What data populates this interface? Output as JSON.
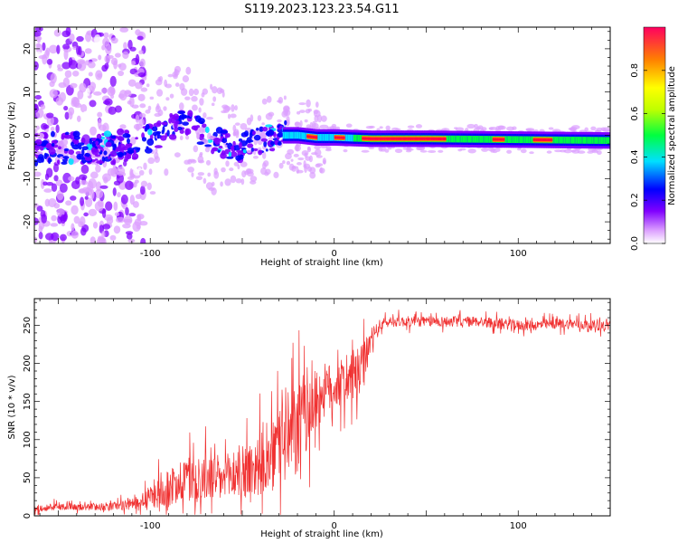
{
  "title": "S119.2023.123.23.54.G11",
  "chart_data": [
    {
      "type": "heatmap",
      "xlabel": "Height of straight line (km)",
      "ylabel": "Frequency (Hz)",
      "xlim": [
        -163,
        150
      ],
      "ylim": [
        -25,
        25
      ],
      "x_ticks": [
        -100,
        0,
        100
      ],
      "y_ticks": [
        -20,
        -10,
        0,
        10,
        20
      ],
      "colorbar": {
        "label": "Normalized spectral amplitude",
        "range": [
          0,
          1
        ],
        "ticks": [
          0.0,
          0.2,
          0.4,
          0.6,
          0.8
        ],
        "colors": [
          "#ffffff",
          "#dca0ff",
          "#8000ff",
          "#0000ff",
          "#00e0ff",
          "#00ff40",
          "#c0ff00",
          "#ffff00",
          "#ff8000",
          "#ff0060"
        ]
      },
      "ridge": {
        "description_points_x": [
          -163,
          -140,
          -120,
          -100,
          -90,
          -80,
          -70,
          -60,
          -50,
          -40,
          -30,
          -20,
          -10,
          0,
          20,
          50,
          100,
          150
        ],
        "frequency_hz": [
          -3,
          -3,
          -3,
          -1,
          2,
          3,
          0,
          -2,
          -3,
          -1,
          0,
          0,
          -0.5,
          -0.5,
          -0.8,
          -0.8,
          -1,
          -1.2
        ]
      }
    },
    {
      "type": "line",
      "xlabel": "Height of straight line (km)",
      "ylabel": "SNR (10 * v/v)",
      "xlim": [
        -163,
        150
      ],
      "ylim": [
        0,
        285
      ],
      "x_ticks": [
        -100,
        0,
        100
      ],
      "y_ticks": [
        0,
        50,
        100,
        150,
        200,
        250
      ],
      "series": [
        {
          "color": "#f03030",
          "x": [
            -163,
            -150,
            -140,
            -130,
            -120,
            -110,
            -100,
            -95,
            -90,
            -85,
            -80,
            -75,
            -70,
            -65,
            -60,
            -55,
            -50,
            -45,
            -40,
            -35,
            -30,
            -25,
            -20,
            -15,
            -10,
            -5,
            0,
            5,
            10,
            15,
            20,
            25,
            30,
            40,
            50,
            60,
            70,
            80,
            90,
            100,
            110,
            120,
            130,
            140,
            150
          ],
          "values": [
            10,
            12,
            11,
            12,
            13,
            15,
            25,
            30,
            35,
            45,
            50,
            45,
            50,
            50,
            45,
            55,
            60,
            60,
            70,
            65,
            100,
            100,
            110,
            140,
            150,
            165,
            170,
            175,
            180,
            190,
            230,
            250,
            255,
            255,
            255,
            255,
            255,
            255,
            252,
            250,
            250,
            252,
            252,
            250,
            250
          ],
          "spread": [
            6,
            7,
            6,
            7,
            8,
            10,
            20,
            30,
            35,
            40,
            45,
            45,
            45,
            45,
            45,
            50,
            55,
            55,
            60,
            60,
            80,
            90,
            90,
            80,
            60,
            50,
            45,
            45,
            45,
            50,
            20,
            12,
            10,
            10,
            10,
            10,
            10,
            10,
            10,
            10,
            10,
            10,
            10,
            10,
            10
          ]
        }
      ]
    }
  ]
}
